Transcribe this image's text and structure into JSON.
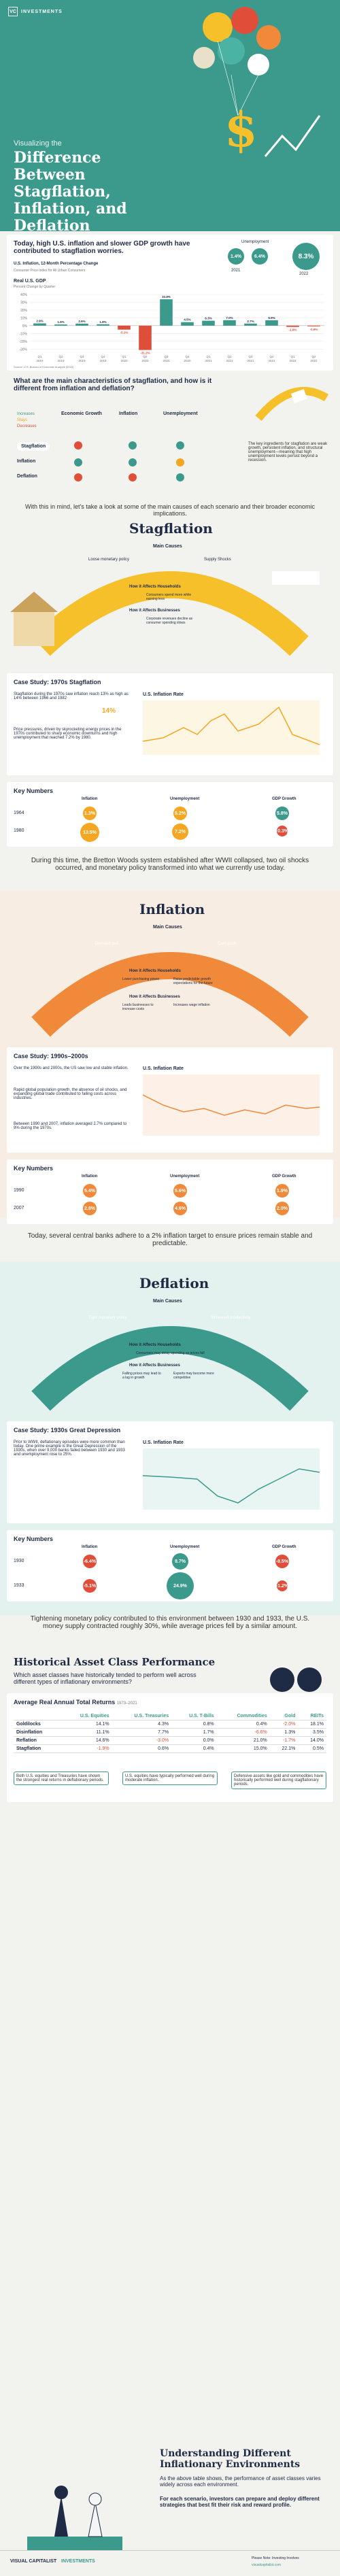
{
  "brand": {
    "name": "INVESTMENTS",
    "mark": "VC"
  },
  "hero": {
    "subtitle": "Visualizing the",
    "title": "Difference Between Stagflation, Inflation, and Deflation"
  },
  "intro": {
    "heading": "Today, high U.S. inflation and slower GDP growth have contributed to stagflation worries.",
    "cpi_label": "U.S. Inflation, 12-Month Percentage Change",
    "cpi_sub": "Consumer Price Index for All Urban Consumers",
    "years": [
      "2021",
      "2022"
    ],
    "unemployment_label": "Unemployment",
    "cpi_values": [
      "1.4%",
      "8.3%"
    ],
    "unemp_values": [
      "6.4%",
      "3.6%"
    ]
  },
  "gdp_chart": {
    "title": "Real U.S. GDP",
    "subtitle": "Percent Change by Quarter",
    "yticks": [
      "40%",
      "30%",
      "20%",
      "10%",
      "0%",
      "-10%",
      "-20%",
      "-30%"
    ],
    "chart_data": {
      "type": "bar",
      "categories": [
        "Q1 2019",
        "Q2 2019",
        "Q3 2019",
        "Q4 2019",
        "Q1 2020",
        "Q2 2020",
        "Q3 2020",
        "Q4 2020",
        "Q1 2021",
        "Q2 2021",
        "Q3 2021",
        "Q4 2021",
        "Q1 2022",
        "Q2 2022"
      ],
      "values": [
        2.9,
        1.5,
        2.6,
        1.8,
        -5.1,
        -31.2,
        33.8,
        4.5,
        6.3,
        7.0,
        2.7,
        6.9,
        -1.6,
        -0.9
      ],
      "labels": [
        "2.9%",
        "1.5%",
        "2.6%",
        "1.8%",
        "-5.1%",
        "-31.2%",
        "33.8%",
        "4.5%",
        "6.3%",
        "7.0%",
        "2.7%",
        "6.9%",
        "-1.6%",
        "-0.9%"
      ],
      "xticks": [
        "Q1\n2019",
        "Q2\n2019",
        "Q3\n2019",
        "Q4\n2019",
        "Q1\n2020",
        "Q2\n2020",
        "Q3\n2020",
        "Q4\n2020",
        "Q1\n2021",
        "Q2\n2021",
        "Q3\n2021",
        "Q4\n2021",
        "Q1\n2022",
        "Q2\n2022"
      ],
      "ylim": [
        -35,
        40
      ],
      "colors": {
        "positive": "#3b9a8c",
        "negative": "#e04e3a"
      }
    },
    "source": "Source: U.S. Bureau of Economic Analysis (2022)"
  },
  "characteristics": {
    "question": "What are the main characteristics of stagflation, and how is it different from inflation and deflation?",
    "legend": [
      "Increases",
      "Stays",
      "Decreases"
    ],
    "cols": [
      "Economic Growth",
      "Inflation",
      "Unemployment"
    ],
    "rows": [
      "Stagflation",
      "Inflation",
      "Deflation"
    ],
    "note": "The key ingredients for stagflation are weak growth, persistent inflation, and structural unemployment—meaning that high unemployment levels persist beyond a recession."
  },
  "transition": "With this in mind, let's take a look at some of the main causes of each scenario and their broader economic implications.",
  "stagflation": {
    "title": "Stagflation",
    "main_causes": "Main Causes",
    "causes": [
      "Loose monetary policy",
      "Supply Shocks"
    ],
    "households": "How it Affects Households",
    "household_items": [
      "Consumers spend more while earning less"
    ],
    "businesses": "How it Affects Businesses",
    "business_items": [
      "Corporate revenues decline as consumer spending slows"
    ],
    "case_title": "Case Study: 1970s Stagflation",
    "case_text1": "Stagflation during the 1970s saw inflation reach 13% as high as 14% between 1966 and 1982",
    "big_pct": "14%",
    "case_text2": "Price pressures, driven by skyrocketing energy prices in the 1970s contributed to sharp economic downturns and high unemployment that reached 7.2% by 1980.",
    "chart_title": "U.S. Inflation Rate",
    "chart_axis": [
      "1966",
      "1970",
      "1975",
      "1980",
      "1985"
    ],
    "key_title": "Key Numbers",
    "key_cols": [
      "Inflation",
      "Unemployment",
      "GDP Growth"
    ],
    "key_rows": [
      {
        "year": "1964",
        "vals": [
          "1.3%",
          "5.2%",
          "5.8%"
        ]
      },
      {
        "year": "1980",
        "vals": [
          "13.5%",
          "7.2%",
          "-0.3%"
        ]
      }
    ],
    "outro": "During this time, the Bretton Woods system established after WWII collapsed, two oil shocks occurred, and monetary policy transformed into what we currently use today."
  },
  "inflation": {
    "title": "Inflation",
    "main_causes": "Main Causes",
    "causes": [
      "Demand-pull",
      "Cost-push"
    ],
    "households": "How it Affects Households",
    "household_items": [
      "Lower purchasing power",
      "Raise predictable growth expectations for the future"
    ],
    "businesses": "How it Affects Businesses",
    "business_items": [
      "Leads businesses to increase costs",
      "Increases wage inflation"
    ],
    "case_title": "Case Study: 1990s–2000s",
    "case_text1": "Over the 1990s and 2000s, the US saw low and stable inflation.",
    "case_text2": "Rapid global population growth, the absence of oil shocks, and expanding global trade contributed to falling costs across industries.",
    "case_text3": "Between 1990 and 2007, inflation averaged 2.7% compared to 9% during the 1970s.",
    "chart_title": "U.S. Inflation Rate",
    "chart_axis": [
      "1990",
      "1995",
      "2000",
      "2005"
    ],
    "key_title": "Key Numbers",
    "key_cols": [
      "Inflation",
      "Unemployment",
      "GDP Growth"
    ],
    "key_rows": [
      {
        "year": "1990",
        "vals": [
          "5.4%",
          "5.6%",
          "1.9%"
        ]
      },
      {
        "year": "2007",
        "vals": [
          "2.8%",
          "4.6%",
          "2.0%"
        ]
      }
    ],
    "outro": "Today, several central banks adhere to a 2% inflation target to ensure prices remain stable and predictable."
  },
  "deflation": {
    "title": "Deflation",
    "main_causes": "Main Causes",
    "causes": [
      "Tight monetary policy",
      "Increased productivity"
    ],
    "households": "How it Affects Households",
    "household_items": [
      "Consumers may delay spending as prices fall"
    ],
    "businesses": "How it Affects Businesses",
    "business_items": [
      "Falling prices may lead to a lag in growth",
      "Exports may become more competitive"
    ],
    "case_title": "Case Study: 1930s Great Depression",
    "case_text1": "Prior to WWII, deflationary episodes were more common than today. One prime example is the Great Depression of the 1930s, when over 9,000 banks failed between 1930 and 1933 and unemployment rose to 25%.",
    "chart_title": "U.S. Inflation Rate",
    "chart_axis": [
      "1925",
      "1930",
      "1935",
      "1940"
    ],
    "key_title": "Key Numbers",
    "key_cols": [
      "Inflation",
      "Unemployment",
      "GDP Growth"
    ],
    "key_rows": [
      {
        "year": "1930",
        "vals": [
          "-6.4%",
          "8.7%",
          "-8.5%"
        ]
      },
      {
        "year": "1933",
        "vals": [
          "-5.1%",
          "24.9%",
          "-1.2%"
        ]
      }
    ],
    "outro": "Tightening monetary policy contributed to this environment between 1930 and 1933, the U.S. money supply contracted roughly 30%, while average prices fell by a similar amount."
  },
  "asset_perf": {
    "title": "Historical Asset Class Performance",
    "subtitle": "Which asset classes have historically tended to perform well across different types of inflationary environments?",
    "table_title": "Average Real Annual Total Returns",
    "table_period": "1973–2021",
    "cols": [
      "",
      "U.S. Equities",
      "U.S. Treasuries",
      "U.S. T-Bills",
      "Commodities",
      "Gold",
      "REITs"
    ],
    "rows": [
      [
        "Goldilocks",
        "14.1%",
        "4.3%",
        "0.8%",
        "0.4%",
        "-2.0%",
        "18.1%"
      ],
      [
        "Disinflation",
        "11.1%",
        "7.7%",
        "1.7%",
        "-6.6%",
        "1.3%",
        "3.5%"
      ],
      [
        "Reflation",
        "14.6%",
        "-3.0%",
        "0.0%",
        "21.0%",
        "-1.7%",
        "14.0%"
      ],
      [
        "Stagflation",
        "-1.9%",
        "0.6%",
        "0.4%",
        "15.0%",
        "22.1%",
        "0.5%"
      ]
    ],
    "notes": [
      "Both U.S. equities and Treasuries have shown the strongest real returns in deflationary periods.",
      "U.S. equities have typically performed well during moderate inflation.",
      "Defensive assets like gold and commodities have historically performed well during stagflationary periods."
    ]
  },
  "conclusion": {
    "title": "Understanding Different Inflationary Environments",
    "text1": "As the above table shows, the performance of asset classes varies widely across each environment.",
    "text2": "For each scenario, investors can prepare and deploy different strategies that best fit their risk and reward profile."
  },
  "footer": {
    "brand": "VISUAL CAPITALIST",
    "partner": "INVESTMENTS",
    "cta": "Please Note: Investing Involves",
    "url": "visualcapitalist.com"
  }
}
